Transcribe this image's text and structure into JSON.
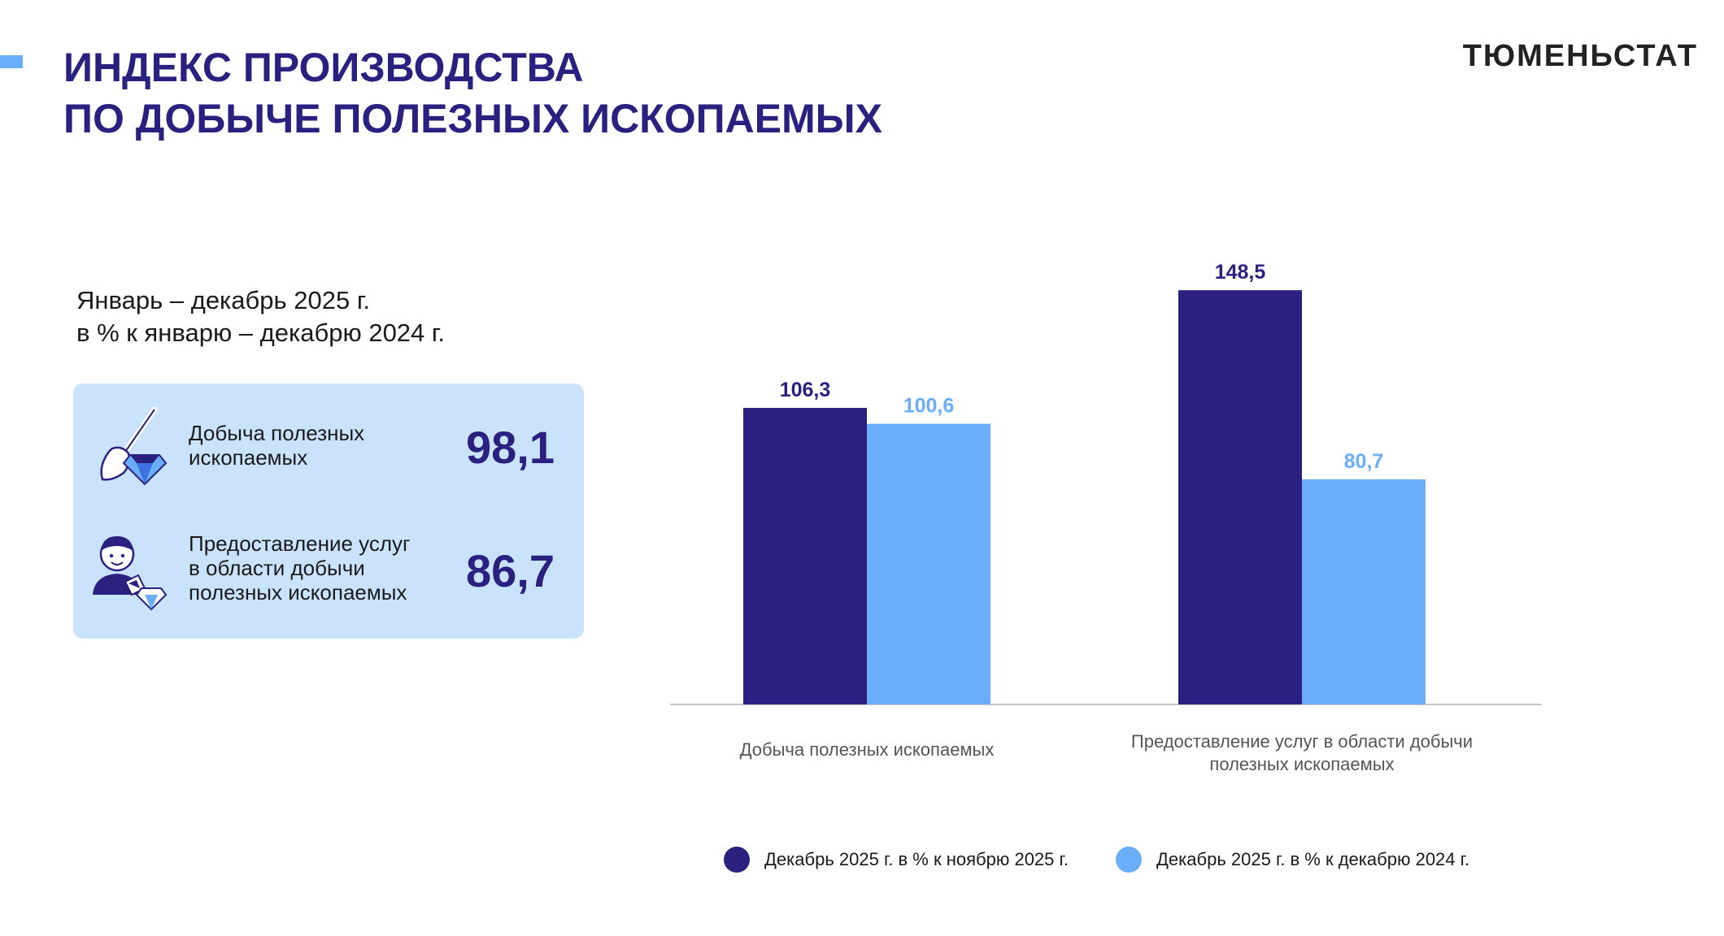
{
  "header": {
    "title_line1": "ИНДЕКС ПРОИЗВОДСТВА",
    "title_line2": "ПО ДОБЫЧЕ ПОЛЕЗНЫХ ИСКОПАЕМЫХ",
    "brand": "ТЮМЕНЬСТАТ"
  },
  "summary": {
    "period_line1": "Январь – декабрь 2025 г.",
    "period_line2": "в % к январю – декабрю 2024 г.",
    "items": [
      {
        "label_lines": [
          "Добыча полезных",
          "ископаемых"
        ],
        "value": "98,1",
        "icon": "shovel-diamond-icon"
      },
      {
        "label_lines": [
          "Предоставление услуг",
          "в области добычи",
          "полезных ископаемых"
        ],
        "value": "86,7",
        "icon": "miner-crystals-icon"
      }
    ]
  },
  "colors": {
    "dark": "#2a2080",
    "light": "#6aaef9",
    "card": "#c9e3fd"
  },
  "chart_data": {
    "type": "bar",
    "categories": [
      "Добыча полезных ископаемых",
      "Предоставление услуг в области добычи полезных ископаемых"
    ],
    "category_label_lines": [
      [
        "Добыча полезных ископаемых"
      ],
      [
        "Предоставление услуг в области добычи",
        "полезных ископаемых"
      ]
    ],
    "series": [
      {
        "name": "Декабрь 2025 г. в % к ноябрю 2025 г.",
        "values": [
          106.3,
          148.5
        ],
        "labels": [
          "106,3",
          "148,5"
        ],
        "color": "#2a2080"
      },
      {
        "name": "Декабрь 2025 г. в % к декабрю 2024 г.",
        "values": [
          100.6,
          80.7
        ],
        "labels": [
          "100,6",
          "80,7"
        ],
        "color": "#6aaef9"
      }
    ],
    "ylim": [
      0,
      150
    ],
    "grid": false,
    "legend_position": "bottom"
  }
}
